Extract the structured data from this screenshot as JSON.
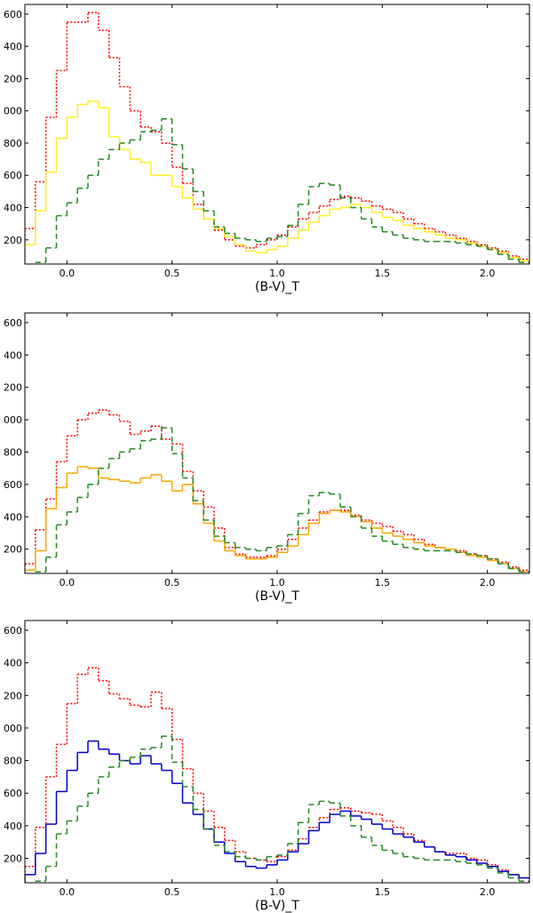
{
  "chart_data": [
    {
      "type": "histogram",
      "xlabel": "(B-V)_T",
      "bins": [
        -0.2,
        -0.15,
        -0.1,
        -0.05,
        0.0,
        0.05,
        0.1,
        0.15,
        0.2,
        0.25,
        0.3,
        0.35,
        0.4,
        0.45,
        0.5,
        0.55,
        0.6,
        0.65,
        0.7,
        0.75,
        0.8,
        0.85,
        0.9,
        0.95,
        1.0,
        1.05,
        1.1,
        1.15,
        1.2,
        1.25,
        1.3,
        1.35,
        1.4,
        1.45,
        1.5,
        1.55,
        1.6,
        1.65,
        1.7,
        1.75,
        1.8,
        1.85,
        1.9,
        1.95,
        2.0,
        2.05,
        2.1,
        2.15,
        2.2
      ],
      "xlim": [
        -0.2,
        2.2
      ],
      "ylim": [
        50,
        1660
      ],
      "xticks": [
        {
          "value": 0,
          "label": "0.0"
        },
        0.5,
        {
          "value": 1,
          "label": "1.0"
        },
        1.5,
        {
          "value": 2,
          "label": "2.0"
        }
      ],
      "yticks": [
        200,
        400,
        600,
        800,
        {
          "value": 1000,
          "label": "000"
        },
        {
          "value": 1200,
          "label": "200"
        },
        {
          "value": 1400,
          "label": "400"
        },
        {
          "value": 1600,
          "label": "600"
        }
      ],
      "series": [
        {
          "color": "#ff0000",
          "linestyle": "dotted",
          "values": [
            270,
            560,
            960,
            1250,
            1550,
            1550,
            1610,
            1500,
            1330,
            1150,
            1000,
            900,
            870,
            800,
            650,
            550,
            420,
            330,
            260,
            200,
            160,
            150,
            170,
            200,
            230,
            280,
            330,
            370,
            410,
            450,
            470,
            460,
            440,
            410,
            390,
            370,
            330,
            300,
            270,
            250,
            230,
            210,
            190,
            170,
            150,
            130,
            100,
            80
          ]
        },
        {
          "color": "#ffee22",
          "linestyle": "solid",
          "values": [
            170,
            380,
            620,
            830,
            960,
            1040,
            1060,
            1020,
            840,
            760,
            700,
            680,
            600,
            600,
            530,
            460,
            390,
            330,
            270,
            220,
            170,
            130,
            120,
            140,
            160,
            210,
            260,
            310,
            350,
            390,
            400,
            420,
            400,
            370,
            340,
            320,
            290,
            270,
            250,
            230,
            210,
            200,
            180,
            160,
            140,
            120,
            90,
            70
          ]
        },
        {
          "color": "#228b22",
          "linestyle": "dashed",
          "values": [
            20,
            60,
            150,
            350,
            430,
            520,
            600,
            700,
            760,
            800,
            820,
            870,
            880,
            950,
            790,
            640,
            500,
            380,
            280,
            240,
            210,
            200,
            190,
            210,
            220,
            290,
            420,
            530,
            550,
            540,
            460,
            400,
            330,
            280,
            250,
            230,
            210,
            200,
            190,
            190,
            190,
            180,
            170,
            160,
            140,
            110,
            80,
            60
          ]
        }
      ]
    },
    {
      "type": "histogram",
      "xlabel": "(B-V)_T",
      "bins": [
        -0.2,
        -0.15,
        -0.1,
        -0.05,
        0.0,
        0.05,
        0.1,
        0.15,
        0.2,
        0.25,
        0.3,
        0.35,
        0.4,
        0.45,
        0.5,
        0.55,
        0.6,
        0.65,
        0.7,
        0.75,
        0.8,
        0.85,
        0.9,
        0.95,
        1.0,
        1.05,
        1.1,
        1.15,
        1.2,
        1.25,
        1.3,
        1.35,
        1.4,
        1.45,
        1.5,
        1.55,
        1.6,
        1.65,
        1.7,
        1.75,
        1.8,
        1.85,
        1.9,
        1.95,
        2.0,
        2.05,
        2.1,
        2.15,
        2.2
      ],
      "xlim": [
        -0.2,
        2.2
      ],
      "ylim": [
        50,
        1660
      ],
      "xticks": [
        {
          "value": 0,
          "label": "0.0"
        },
        0.5,
        {
          "value": 1,
          "label": "1.0"
        },
        1.5,
        {
          "value": 2,
          "label": "2.0"
        }
      ],
      "yticks": [
        200,
        400,
        600,
        800,
        {
          "value": 1000,
          "label": "000"
        },
        {
          "value": 1200,
          "label": "200"
        },
        {
          "value": 1400,
          "label": "400"
        },
        {
          "value": 1600,
          "label": "600"
        }
      ],
      "series": [
        {
          "color": "#ff0000",
          "linestyle": "dotted",
          "values": [
            110,
            320,
            510,
            740,
            900,
            1000,
            1040,
            1060,
            1030,
            990,
            910,
            930,
            960,
            880,
            850,
            680,
            560,
            460,
            330,
            210,
            170,
            150,
            150,
            160,
            200,
            260,
            330,
            380,
            430,
            440,
            440,
            410,
            380,
            360,
            340,
            310,
            290,
            260,
            230,
            210,
            200,
            190,
            170,
            160,
            140,
            120,
            90,
            70
          ]
        },
        {
          "color": "#ffa500",
          "linestyle": "solid",
          "values": [
            70,
            190,
            450,
            580,
            670,
            710,
            700,
            640,
            630,
            620,
            610,
            640,
            660,
            620,
            560,
            600,
            480,
            360,
            250,
            190,
            160,
            140,
            140,
            150,
            180,
            220,
            290,
            360,
            420,
            440,
            430,
            400,
            370,
            330,
            300,
            280,
            260,
            240,
            220,
            210,
            200,
            180,
            160,
            150,
            130,
            110,
            80,
            60
          ]
        },
        {
          "color": "#228b22",
          "linestyle": "dashed",
          "values": [
            20,
            60,
            150,
            350,
            430,
            520,
            600,
            700,
            760,
            800,
            820,
            870,
            880,
            950,
            790,
            640,
            500,
            380,
            280,
            240,
            210,
            200,
            190,
            210,
            220,
            290,
            420,
            530,
            550,
            540,
            460,
            400,
            330,
            280,
            250,
            230,
            210,
            200,
            190,
            190,
            190,
            180,
            170,
            160,
            140,
            110,
            80,
            60
          ]
        }
      ]
    },
    {
      "type": "histogram",
      "xlabel": "(B-V)_T",
      "bins": [
        -0.2,
        -0.15,
        -0.1,
        -0.05,
        0.0,
        0.05,
        0.1,
        0.15,
        0.2,
        0.25,
        0.3,
        0.35,
        0.4,
        0.45,
        0.5,
        0.55,
        0.6,
        0.65,
        0.7,
        0.75,
        0.8,
        0.85,
        0.9,
        0.95,
        1.0,
        1.05,
        1.1,
        1.15,
        1.2,
        1.25,
        1.3,
        1.35,
        1.4,
        1.45,
        1.5,
        1.55,
        1.6,
        1.65,
        1.7,
        1.75,
        1.8,
        1.85,
        1.9,
        1.95,
        2.0,
        2.05,
        2.1,
        2.15,
        2.2
      ],
      "xlim": [
        -0.2,
        2.2
      ],
      "ylim": [
        50,
        1660
      ],
      "xticks": [
        {
          "value": 0,
          "label": "0.0"
        },
        0.5,
        {
          "value": 1,
          "label": "1.0"
        },
        1.5,
        {
          "value": 2,
          "label": "2.0"
        }
      ],
      "yticks": [
        200,
        400,
        600,
        800,
        {
          "value": 1000,
          "label": "000"
        },
        {
          "value": 1200,
          "label": "200"
        },
        {
          "value": 1400,
          "label": "400"
        },
        {
          "value": 1600,
          "label": "600"
        }
      ],
      "series": [
        {
          "color": "#ff0000",
          "linestyle": "dotted",
          "values": [
            150,
            390,
            700,
            900,
            1150,
            1330,
            1370,
            1290,
            1210,
            1180,
            1140,
            1130,
            1220,
            1120,
            930,
            750,
            600,
            490,
            390,
            310,
            240,
            200,
            190,
            180,
            210,
            250,
            320,
            390,
            450,
            500,
            510,
            490,
            480,
            470,
            430,
            390,
            350,
            310,
            270,
            240,
            230,
            230,
            200,
            190,
            160,
            130,
            100,
            80
          ]
        },
        {
          "color": "#0000cc",
          "linestyle": "solid",
          "values": [
            100,
            230,
            410,
            610,
            740,
            850,
            920,
            870,
            840,
            800,
            780,
            830,
            780,
            740,
            660,
            540,
            470,
            380,
            300,
            230,
            180,
            150,
            140,
            160,
            190,
            240,
            290,
            370,
            420,
            470,
            490,
            460,
            440,
            410,
            380,
            350,
            330,
            300,
            270,
            240,
            220,
            210,
            190,
            170,
            150,
            120,
            100,
            80
          ]
        },
        {
          "color": "#228b22",
          "linestyle": "dashed",
          "values": [
            20,
            60,
            150,
            350,
            430,
            520,
            600,
            700,
            760,
            800,
            820,
            870,
            880,
            950,
            790,
            640,
            500,
            380,
            280,
            240,
            210,
            200,
            190,
            210,
            220,
            290,
            420,
            530,
            550,
            540,
            460,
            400,
            330,
            280,
            250,
            230,
            210,
            200,
            190,
            190,
            190,
            180,
            170,
            160,
            140,
            110,
            80,
            60
          ]
        }
      ]
    }
  ]
}
